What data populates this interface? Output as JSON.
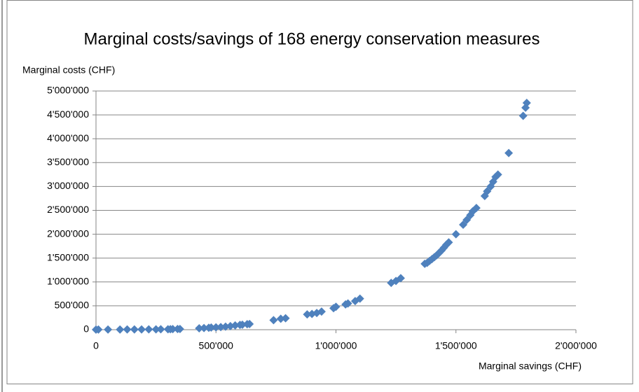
{
  "chart_data": {
    "type": "scatter",
    "title": "Marginal costs/savings of 168 energy conservation measures",
    "y_label": "Marginal costs (CHF)",
    "x_label": "Marginal savings (CHF)",
    "xlim": [
      0,
      2000000
    ],
    "ylim": [
      0,
      5000000
    ],
    "xticks": [
      0,
      {
        "value": 500000,
        "label": "500'000"
      },
      {
        "value": 1000000,
        "label": "1'000'000"
      },
      {
        "value": 1500000,
        "label": "1'500'000"
      },
      {
        "value": 2000000,
        "label": "2'000'000"
      }
    ],
    "yticks": [
      0,
      {
        "value": 500000,
        "label": "500'000"
      },
      {
        "value": 1000000,
        "label": "1'000'000"
      },
      {
        "value": 1500000,
        "label": "1'500'000"
      },
      {
        "value": 2000000,
        "label": "2'000'000"
      },
      {
        "value": 2500000,
        "label": "2'500'000"
      },
      {
        "value": 3000000,
        "label": "3'000'000"
      },
      {
        "value": 3500000,
        "label": "3'500'000"
      },
      {
        "value": 4000000,
        "label": "4'000'000"
      },
      {
        "value": 4500000,
        "label": "4'500'000"
      },
      {
        "value": 5000000,
        "label": "5'000'000"
      }
    ],
    "grid": true,
    "color": "#4f81bd",
    "x": [
      0,
      10000,
      50000,
      100000,
      130000,
      160000,
      190000,
      220000,
      250000,
      270000,
      300000,
      310000,
      320000,
      340000,
      350000,
      430000,
      450000,
      470000,
      480000,
      500000,
      520000,
      540000,
      560000,
      580000,
      600000,
      610000,
      630000,
      640000,
      740000,
      770000,
      790000,
      880000,
      900000,
      920000,
      940000,
      990000,
      1000000,
      1040000,
      1050000,
      1080000,
      1100000,
      1230000,
      1250000,
      1270000,
      1370000,
      1380000,
      1390000,
      1400000,
      1410000,
      1420000,
      1430000,
      1440000,
      1450000,
      1460000,
      1470000,
      1500000,
      1530000,
      1545000,
      1560000,
      1570000,
      1585000,
      1620000,
      1630000,
      1645000,
      1655000,
      1665000,
      1675000,
      1720000,
      1780000,
      1790000,
      1795000
    ],
    "values": [
      2000,
      3000,
      3000,
      4000,
      5000,
      5000,
      6000,
      7000,
      8000,
      9000,
      10000,
      11000,
      12000,
      14000,
      15000,
      30000,
      35000,
      40000,
      45000,
      50000,
      55000,
      65000,
      75000,
      90000,
      100000,
      105000,
      115000,
      120000,
      200000,
      230000,
      240000,
      320000,
      330000,
      350000,
      380000,
      450000,
      480000,
      530000,
      550000,
      600000,
      650000,
      980000,
      1020000,
      1080000,
      1380000,
      1400000,
      1440000,
      1480000,
      1520000,
      1560000,
      1610000,
      1660000,
      1720000,
      1780000,
      1830000,
      2000000,
      2200000,
      2300000,
      2400000,
      2480000,
      2550000,
      2800000,
      2900000,
      3000000,
      3100000,
      3200000,
      3250000,
      3700000,
      4480000,
      4650000,
      4750000
    ]
  }
}
